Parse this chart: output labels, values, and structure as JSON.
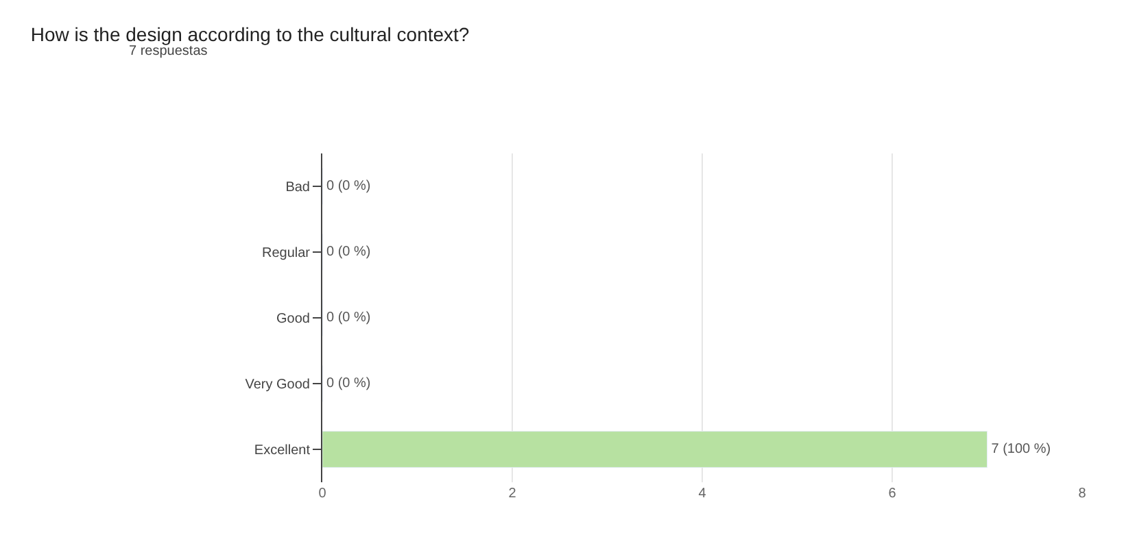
{
  "chart_data": {
    "type": "bar",
    "orientation": "horizontal",
    "title": "How is the design according to the cultural context?",
    "subtitle": "7 respuestas",
    "categories": [
      "Bad",
      "Regular",
      "Good",
      "Very Good",
      "Excellent"
    ],
    "values": [
      0,
      0,
      0,
      0,
      7
    ],
    "color": "#b7e1a1",
    "value_labels": [
      "0 (0 %)",
      "0 (0 %)",
      "0 (0 %)",
      "0 (0 %)",
      "7 (100 %)"
    ],
    "xlim": [
      0,
      8
    ],
    "xticks": [
      0,
      2,
      4,
      6,
      8
    ],
    "grid": "x",
    "legend": false
  }
}
